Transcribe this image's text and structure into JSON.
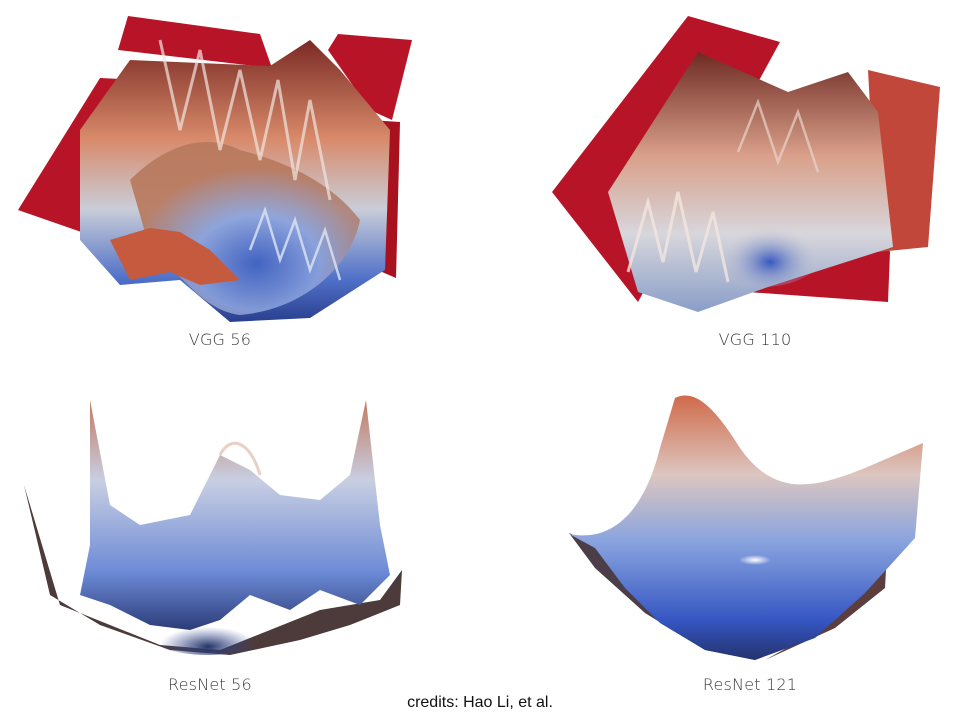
{
  "panels": [
    {
      "caption": "VGG 56",
      "surface": "chaotic-loss-surface"
    },
    {
      "caption": "VGG 110",
      "surface": "chaotic-loss-surface"
    },
    {
      "caption": "ResNet 56",
      "surface": "wavy-loss-surface"
    },
    {
      "caption": "ResNet 121",
      "surface": "smooth-convex-loss-surface"
    }
  ],
  "credits": "credits: Hao Li, et al.",
  "colors": {
    "high_loss": "#b81428",
    "mid": "#e6dcd6",
    "low_loss": "#2f4fb0",
    "shadow": "#3a2a2a"
  }
}
